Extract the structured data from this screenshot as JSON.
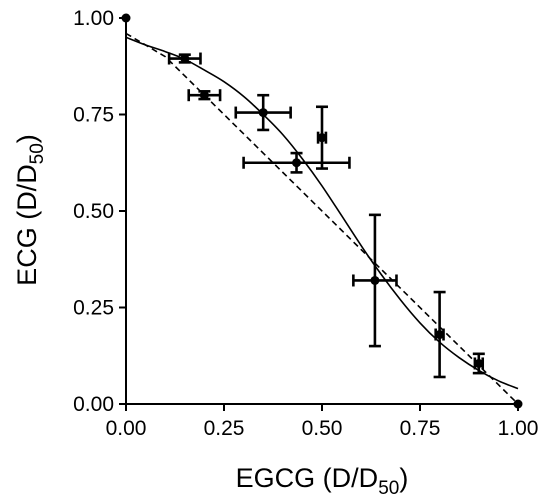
{
  "chart_data": {
    "type": "scatter",
    "x_label": {
      "main": "EGCG (D/D",
      "sub": "50",
      "close": ")"
    },
    "y_label": {
      "main": "ECG (D/D",
      "sub": "50",
      "close": ")"
    },
    "xlim": [
      0,
      1
    ],
    "ylim": [
      0,
      1
    ],
    "x_ticks": [
      0,
      0.25,
      0.5,
      0.75,
      1
    ],
    "x_tick_labels": [
      "0.00",
      "0.25",
      "0.50",
      "0.75",
      "1.00"
    ],
    "y_ticks": [
      0,
      0.25,
      0.5,
      0.75,
      1
    ],
    "y_tick_labels": [
      "0.00",
      "0.25",
      "0.50",
      "0.75",
      "1.00"
    ],
    "grid": false,
    "points": [
      {
        "x": 0.0,
        "y": 1.0
      },
      {
        "x": 0.15,
        "y": 0.895,
        "xerr": 0.04,
        "yerr": 0.01
      },
      {
        "x": 0.2,
        "y": 0.8,
        "xerr": 0.04,
        "yerr": 0.01
      },
      {
        "x": 0.35,
        "y": 0.755,
        "xerr": 0.07,
        "yerr": 0.045
      },
      {
        "x": 0.435,
        "y": 0.625,
        "xerr": 0.135,
        "yerr": 0.025
      },
      {
        "x": 0.5,
        "y": 0.69,
        "xerr": 0.01,
        "yerr": 0.08
      },
      {
        "x": 0.635,
        "y": 0.32,
        "xerr": 0.055,
        "yerr": 0.17
      },
      {
        "x": 0.8,
        "y": 0.18,
        "xerr": 0.01,
        "yerr": 0.11
      },
      {
        "x": 0.9,
        "y": 0.105,
        "xerr": 0.01,
        "yerr": 0.025
      },
      {
        "x": 1.0,
        "y": 0.0
      }
    ],
    "solid_curve": {
      "x": [
        0.0,
        0.05,
        0.1,
        0.15,
        0.2,
        0.25,
        0.3,
        0.35,
        0.4,
        0.45,
        0.5,
        0.55,
        0.6,
        0.65,
        0.7,
        0.75,
        0.8,
        0.85,
        0.9,
        0.95,
        1.0
      ],
      "y": [
        0.95,
        0.93,
        0.913,
        0.893,
        0.865,
        0.835,
        0.797,
        0.75,
        0.698,
        0.635,
        0.565,
        0.488,
        0.41,
        0.337,
        0.27,
        0.21,
        0.16,
        0.12,
        0.087,
        0.06,
        0.04
      ]
    },
    "dashed_curve": {
      "x": [
        0.0,
        0.1,
        1.0
      ],
      "y": [
        0.96,
        0.9,
        0.0
      ]
    }
  }
}
